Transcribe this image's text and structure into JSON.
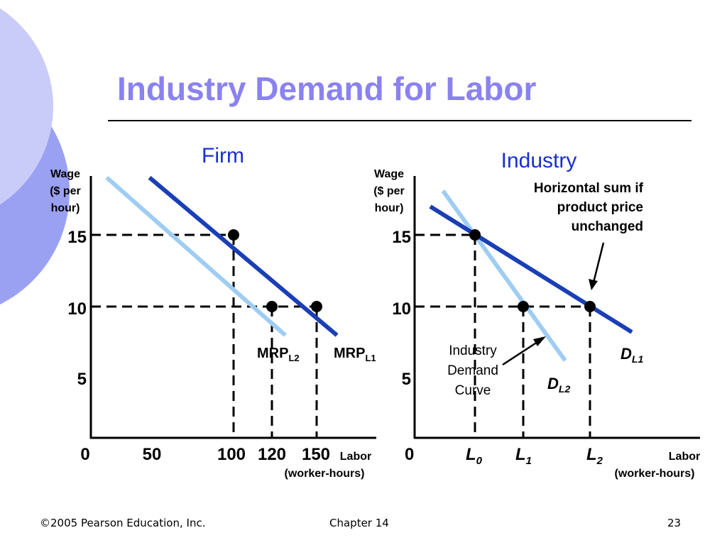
{
  "slide": {
    "title": "Industry Demand for Labor",
    "footer": {
      "copyright": "©2005 Pearson Education, Inc.",
      "chapter": "Chapter 14",
      "page": "23"
    }
  },
  "colors": {
    "title": "#8a82f0",
    "dark_curve": "#1a3fb5",
    "light_curve": "#9fcdf2",
    "panel_title": "#1a2fcf",
    "deco_outer": "#9aa0f2",
    "deco_inner": "#c9ccf8"
  },
  "chart_data": [
    {
      "type": "line",
      "title": "Firm",
      "ylabel": [
        "Wage",
        "($ per",
        "hour)"
      ],
      "xlabel": [
        "Labor",
        "(worker-hours)"
      ],
      "x_ticks": [
        "0",
        "50",
        "100",
        "120",
        "150"
      ],
      "y_ticks": [
        "15",
        "10",
        "5"
      ],
      "series": [
        {
          "name": "MRP_L1",
          "label_main": "MRP",
          "label_sub": "L1",
          "color": "#1a3fb5",
          "x": [
            48,
            163
          ],
          "y": [
            19,
            8
          ]
        },
        {
          "name": "MRP_L2",
          "label_main": "MRP",
          "label_sub": "L2",
          "color": "#9fcdf2",
          "x": [
            13,
            129
          ],
          "y": [
            19,
            8
          ]
        }
      ],
      "points": [
        {
          "x": 100,
          "y": 15
        },
        {
          "x": 120,
          "y": 10
        },
        {
          "x": 150,
          "y": 10
        }
      ]
    },
    {
      "type": "line",
      "title": "Industry",
      "ylabel": [
        "Wage",
        "($ per",
        "hour)"
      ],
      "xlabel": [
        "Labor",
        "(worker-hours)"
      ],
      "x_ticks": [
        {
          "main": "0",
          "sub": ""
        },
        {
          "main": "L",
          "sub": "0"
        },
        {
          "main": "L",
          "sub": "1"
        },
        {
          "main": "L",
          "sub": "2"
        }
      ],
      "y_ticks": [
        "15",
        "10",
        "5"
      ],
      "series": [
        {
          "name": "D_L1",
          "label_main": "D",
          "label_sub": "L1",
          "color": "#1a3fb5"
        },
        {
          "name": "D_L2",
          "label_main": "D",
          "label_sub": "L2",
          "color": "#9fcdf2"
        }
      ],
      "annotations": {
        "horizontal_sum": [
          "Horizontal sum if",
          "product price",
          "unchanged"
        ],
        "industry_demand": [
          "Industry",
          "Demand",
          "Curve"
        ]
      }
    }
  ]
}
